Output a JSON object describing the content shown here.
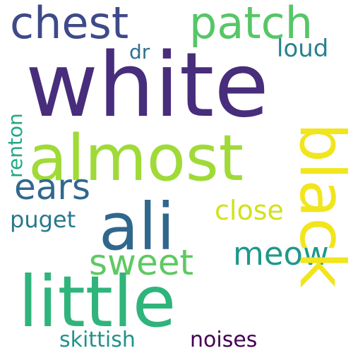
{
  "background": "#ffffff",
  "words": {
    "white": {
      "text": "white",
      "color": "#472d7b"
    },
    "almost": {
      "text": "almost",
      "color": "#a0da39"
    },
    "ali": {
      "text": "ali",
      "color": "#30678d"
    },
    "little": {
      "text": "little",
      "color": "#2fb47c"
    },
    "black": {
      "text": "black",
      "color": "#f1e51d"
    },
    "chest": {
      "text": "chest",
      "color": "#3e4a89"
    },
    "patch": {
      "text": "patch",
      "color": "#56c667"
    },
    "dr": {
      "text": "dr",
      "color": "#2e6f8e"
    },
    "loud": {
      "text": "loud",
      "color": "#26828e"
    },
    "ears": {
      "text": "ears",
      "color": "#31688e"
    },
    "close": {
      "text": "close",
      "color": "#d2e21b"
    },
    "puget": {
      "text": "puget",
      "color": "#29788e"
    },
    "meow": {
      "text": "meow",
      "color": "#1f988b"
    },
    "sweet": {
      "text": "sweet",
      "color": "#5ec962"
    },
    "renton": {
      "text": "renton",
      "color": "#22a884"
    },
    "skittish": {
      "text": "skittish",
      "color": "#21918c"
    },
    "noises": {
      "text": "noises",
      "color": "#440154"
    }
  }
}
